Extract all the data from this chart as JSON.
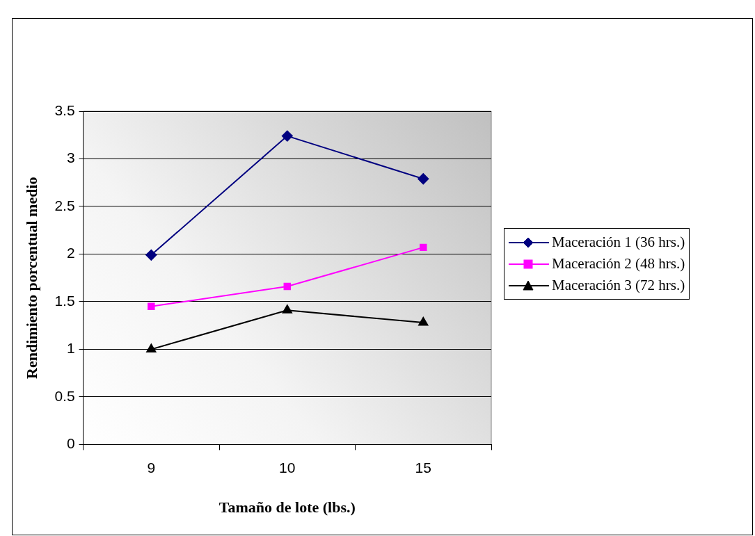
{
  "chart_data": {
    "type": "line",
    "xlabel": "Tamaño de lote (lbs.)",
    "ylabel": "Rendimiento porcentual medio",
    "categories": [
      "9",
      "10",
      "15"
    ],
    "series": [
      {
        "name": "Maceración 1 (36 hrs.)",
        "color": "#000080",
        "marker": "diamond",
        "values": [
          1.99,
          3.24,
          2.79
        ]
      },
      {
        "name": "Maceración 2 (48 hrs.)",
        "color": "#ff00ff",
        "marker": "square",
        "values": [
          1.45,
          1.66,
          2.07
        ]
      },
      {
        "name": "Maceración 3 (72 hrs.)",
        "color": "#000000",
        "marker": "triangle",
        "values": [
          1.0,
          1.41,
          1.28
        ]
      }
    ],
    "ylim": [
      0,
      3.5
    ],
    "yticks": [
      0,
      {
        "value": 0.5,
        "label": "0.5"
      },
      1,
      {
        "value": 1.5,
        "label": "1.5"
      },
      2,
      {
        "value": 2.5,
        "label": "2.5"
      },
      3,
      {
        "value": 3.5,
        "label": "3.5"
      }
    ],
    "grid": "y",
    "legend": "right",
    "line_style": "solid"
  }
}
